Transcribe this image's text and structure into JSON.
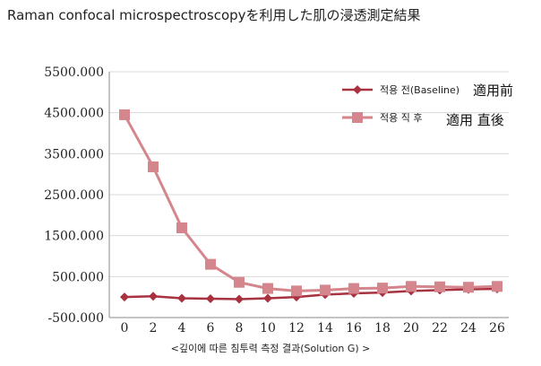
{
  "title": "Raman confocal microspectroscopyを利用した肌の浸透測定結果",
  "footer_label": "<깊이에 따른 침투력 측정 결과(Solution G) >",
  "annotations": {
    "before_ja": "適用前",
    "after_ja": "適用 直後"
  },
  "chart_data": {
    "type": "line",
    "x": [
      0,
      2,
      4,
      6,
      8,
      10,
      12,
      14,
      16,
      18,
      20,
      22,
      24,
      26
    ],
    "ylim": [
      -500,
      5500
    ],
    "yticks": [
      5500,
      4500,
      3500,
      2500,
      1500,
      500,
      -500
    ],
    "ytick_labels": [
      "5500.000",
      "4500.000",
      "3500.000",
      "2500.000",
      "1500.000",
      "500.000",
      "-500.000"
    ],
    "xtick_labels": [
      "0",
      "2",
      "4",
      "6",
      "8",
      "10",
      "12",
      "14",
      "16",
      "18",
      "20",
      "22",
      "24",
      "26"
    ],
    "legend_position": "top-right",
    "series": [
      {
        "name": "적용 전(Baseline)",
        "color": "#a8323f",
        "marker": "diamond",
        "values": [
          0,
          20,
          -30,
          -40,
          -50,
          -30,
          0,
          60,
          90,
          110,
          150,
          170,
          190,
          200
        ]
      },
      {
        "name": "적용 직 후",
        "color": "#d4868c",
        "marker": "square",
        "values": [
          4450,
          3180,
          1690,
          800,
          360,
          210,
          150,
          170,
          210,
          220,
          260,
          250,
          240,
          260
        ]
      }
    ]
  }
}
